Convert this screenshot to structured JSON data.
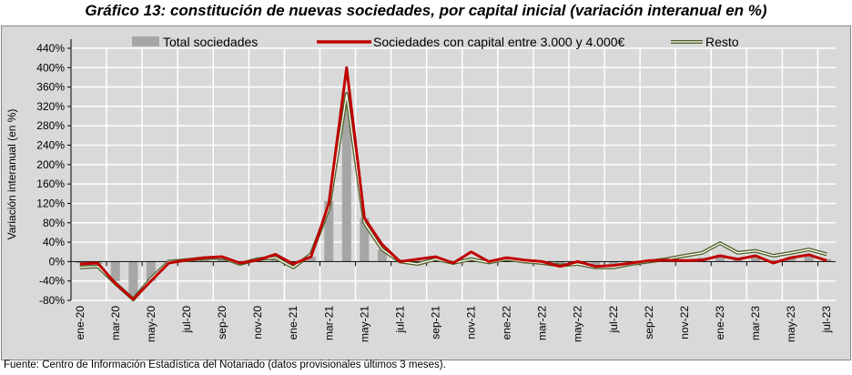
{
  "title": "Gráfico 13: constitución de nuevas sociedades, por capital inicial (variación interanual en %)",
  "footer": "Fuente: Centro de Información Estadística del Notariado (datos provisionales últimos 3 meses).",
  "chart_data": {
    "type": "bar+line",
    "title": "Gráfico 13: constitución de nuevas sociedades, por capital inicial (variación interanual en %)",
    "ylabel": "Variación interanual (en %)",
    "xlabel": "",
    "ylim": [
      -80,
      440
    ],
    "yticks": [
      -80,
      -40,
      0,
      40,
      80,
      120,
      160,
      200,
      240,
      280,
      320,
      360,
      400,
      440
    ],
    "ytick_labels": [
      "-80%",
      "-40%",
      "0%",
      "40%",
      "80%",
      "120%",
      "160%",
      "200%",
      "240%",
      "280%",
      "320%",
      "360%",
      "400%",
      "440%"
    ],
    "legend_position": "top",
    "x_labels": [
      "ene-20",
      "mar-20",
      "may-20",
      "jul-20",
      "sep-20",
      "nov-20",
      "ene-21",
      "mar-21",
      "may-21",
      "jul-21",
      "sep-21",
      "nov-21",
      "ene-22",
      "mar-22",
      "may-22",
      "jul-22",
      "sep-22",
      "nov-22",
      "ene-23",
      "mar-23",
      "may-23",
      "jul-23"
    ],
    "months": 43,
    "series": [
      {
        "name": "Total sociedades",
        "type": "bar",
        "color": "#a6a6a6",
        "values": [
          -3,
          -5,
          -40,
          -75,
          -40,
          0,
          3,
          6,
          8,
          -3,
          3,
          8,
          -8,
          10,
          125,
          350,
          90,
          25,
          0,
          0,
          5,
          -3,
          5,
          -2,
          5,
          0,
          -3,
          -8,
          -5,
          -10,
          -10,
          -4,
          0,
          3,
          5,
          8,
          14,
          8,
          10,
          3,
          8,
          12,
          5
        ]
      },
      {
        "name": "Sociedades con capital entre 3.000 y 4.000€",
        "type": "line",
        "color": "#c00000",
        "values": [
          -5,
          -3,
          -45,
          -78,
          -40,
          -3,
          3,
          8,
          10,
          -3,
          3,
          15,
          -5,
          10,
          120,
          400,
          90,
          35,
          0,
          5,
          10,
          -3,
          20,
          0,
          8,
          3,
          0,
          -10,
          0,
          -10,
          -8,
          -3,
          2,
          3,
          2,
          3,
          12,
          5,
          12,
          -3,
          8,
          14,
          2
        ]
      },
      {
        "name": "Resto",
        "type": "line",
        "color": "#4f6228",
        "values": [
          -12,
          -10,
          -45,
          -78,
          -35,
          0,
          3,
          7,
          8,
          -5,
          5,
          8,
          -12,
          15,
          110,
          345,
          80,
          25,
          0,
          -5,
          5,
          -3,
          5,
          -2,
          5,
          0,
          -3,
          -8,
          -5,
          -12,
          -12,
          -5,
          0,
          5,
          12,
          18,
          38,
          18,
          22,
          12,
          18,
          25,
          15
        ]
      }
    ]
  }
}
